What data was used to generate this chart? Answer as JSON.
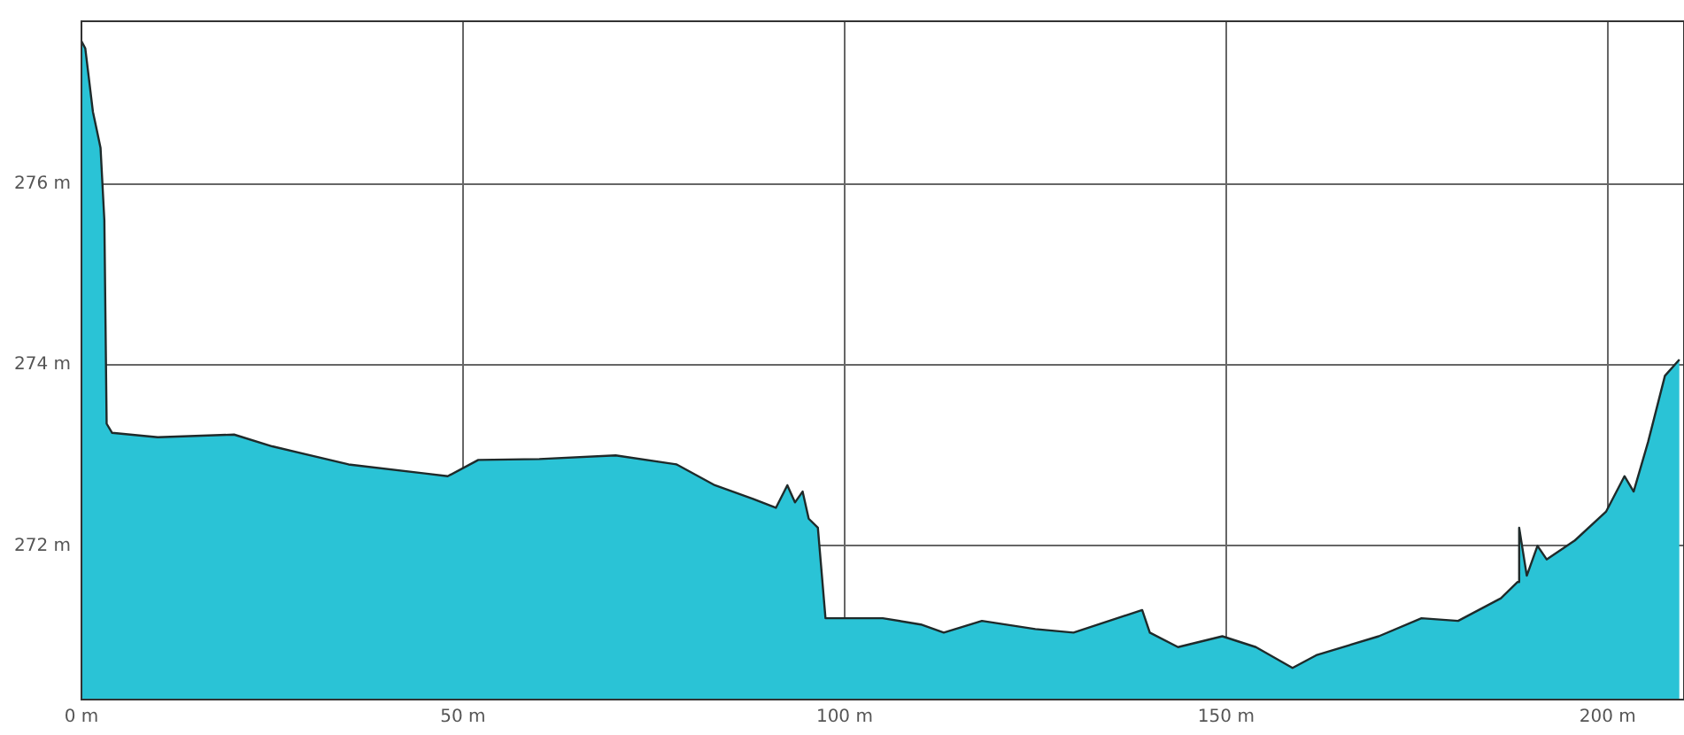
{
  "chart_data": {
    "type": "area",
    "x": [
      0,
      0.5,
      1.5,
      2,
      2.5,
      3,
      3.3,
      4,
      10,
      20,
      25,
      35,
      45,
      48,
      52,
      60,
      70,
      78,
      83,
      88,
      91,
      92.5,
      93.5,
      94.5,
      95.3,
      96.5,
      97.5,
      100,
      105,
      110,
      113,
      118,
      125,
      130,
      139,
      140,
      143.7,
      149.5,
      153.9,
      158.7,
      161.8,
      170,
      175.6,
      180.4,
      186,
      188.2,
      188.4,
      189.4,
      190.8,
      192,
      195.7,
      199.8,
      202.2,
      203.4,
      205.3,
      207.5,
      209.4
    ],
    "series": [
      {
        "color": "#2ac3d6",
        "values": [
          277.58,
          277.5,
          276.8,
          276.6,
          276.4,
          275.6,
          273.35,
          273.25,
          273.2,
          273.23,
          273.1,
          272.9,
          272.8,
          272.77,
          272.95,
          272.96,
          273.0,
          272.9,
          272.67,
          272.52,
          272.42,
          272.67,
          272.48,
          272.6,
          272.3,
          272.2,
          271.2,
          271.2,
          271.2,
          271.13,
          271.04,
          271.17,
          271.08,
          271.04,
          271.29,
          271.04,
          270.88,
          271.0,
          270.88,
          270.65,
          270.79,
          271.0,
          271.2,
          271.17,
          271.42,
          271.6,
          272.2,
          271.67,
          272.0,
          271.85,
          272.06,
          272.38,
          272.77,
          272.6,
          273.15,
          273.88,
          274.06
        ]
      }
    ],
    "xlim": [
      0,
      210
    ],
    "ylim": [
      270.3,
      277.8
    ],
    "xticks": [
      {
        "value": 0,
        "label": "0 m"
      },
      {
        "value": 50,
        "label": "50 m"
      },
      {
        "value": 100,
        "label": "100 m"
      },
      {
        "value": 150,
        "label": "150 m"
      },
      {
        "value": 200,
        "label": "200 m"
      }
    ],
    "yticks": [
      {
        "value": 272,
        "label": "272 m"
      },
      {
        "value": 274,
        "label": "274 m"
      },
      {
        "value": 276,
        "label": "276 m"
      }
    ],
    "grid": true,
    "legend": false,
    "marker": "none",
    "line_style": "solid"
  }
}
